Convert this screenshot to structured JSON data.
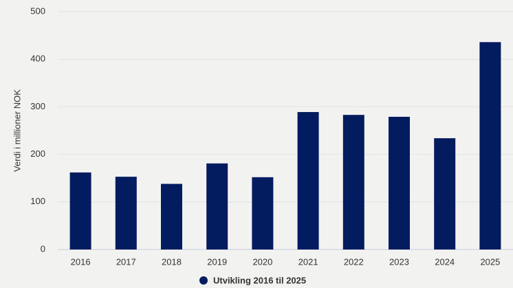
{
  "chart_data": {
    "type": "bar",
    "y_label": "Verdi i millioner NOK",
    "categories": [
      "2016",
      "2017",
      "2018",
      "2019",
      "2020",
      "2021",
      "2022",
      "2023",
      "2024",
      "2025"
    ],
    "series": [
      {
        "name": "Utvikling 2016 til 2025",
        "color": "#031c5f",
        "values": [
          162,
          153,
          138,
          181,
          152,
          289,
          283,
          279,
          234,
          436
        ]
      }
    ],
    "ylim": [
      0,
      500
    ],
    "yticks": [
      0,
      100,
      200,
      300,
      400,
      500
    ],
    "grid": true
  }
}
